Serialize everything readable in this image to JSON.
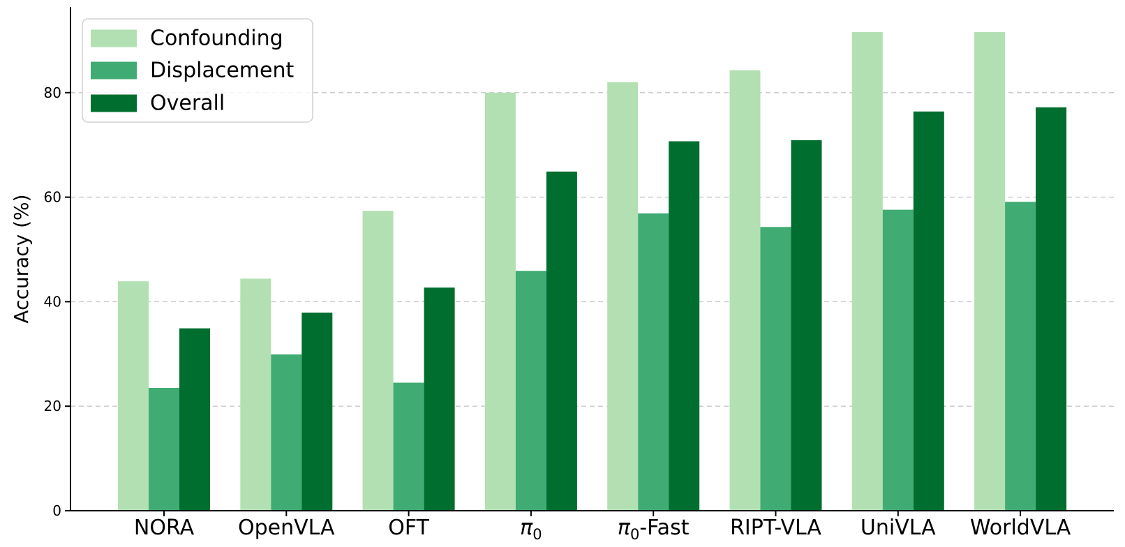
{
  "chart_data": {
    "type": "bar",
    "title": "",
    "xlabel": "",
    "ylabel": "Accuracy (%)",
    "categories": [
      "NORA",
      "OpenVLA",
      "OFT",
      "π0",
      "π0-Fast",
      "RIPT-VLA",
      "UniVLA",
      "WorldVLA"
    ],
    "series": [
      {
        "name": "Confounding",
        "color": "#b2e0b2",
        "values": [
          43.9,
          44.4,
          57.4,
          80.0,
          82.0,
          84.3,
          91.6,
          91.6
        ]
      },
      {
        "name": "Displacement",
        "color": "#40ab72",
        "values": [
          23.5,
          29.9,
          24.5,
          45.9,
          56.9,
          54.3,
          57.6,
          59.1
        ]
      },
      {
        "name": "Overall",
        "color": "#006e2e",
        "values": [
          34.9,
          37.9,
          42.7,
          64.9,
          70.7,
          70.9,
          76.4,
          77.2
        ]
      }
    ],
    "ylim": [
      0,
      96.4
    ],
    "yticks": [
      0,
      20,
      40,
      60,
      80
    ],
    "grid": "horizontal-dashed",
    "gridline_color": "#cccccc",
    "axis_color": "#000000",
    "legend_position": "upper-left",
    "legend_labels": [
      "Confounding",
      "Displacement",
      "Overall"
    ]
  }
}
